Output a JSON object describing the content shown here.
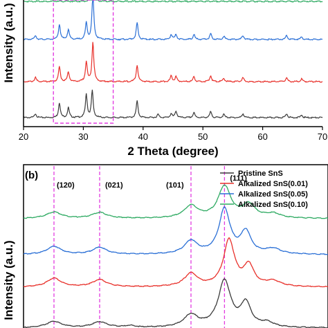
{
  "colors": {
    "pristine": "#3a3a3a",
    "alk001": "#e8302a",
    "alk005": "#2a6fd6",
    "alk010": "#2eaa62",
    "guide": "#e23be0"
  },
  "chart_data": [
    {
      "type": "line",
      "panel": "a",
      "xlabel": "2 Theta (degree)",
      "ylabel": "Intensity (a.u.)",
      "xlim": [
        20,
        70
      ],
      "xticks": [
        "20",
        "30",
        "40",
        "50",
        "60",
        "70"
      ],
      "highlight_region": {
        "x_from": 25,
        "x_to": 35,
        "style": "dashed-box"
      },
      "series": [
        {
          "name": "Pristine SnS",
          "offset": 0,
          "peaks": [
            [
              22.0,
              0.12
            ],
            [
              26.0,
              0.45
            ],
            [
              27.5,
              0.3
            ],
            [
              30.5,
              0.7
            ],
            [
              31.5,
              0.8
            ],
            [
              39.0,
              0.5
            ],
            [
              42.5,
              0.1
            ],
            [
              44.7,
              0.12
            ],
            [
              45.5,
              0.2
            ],
            [
              48.5,
              0.15
            ],
            [
              51.3,
              0.18
            ],
            [
              53.5,
              0.1
            ],
            [
              56.7,
              0.12
            ],
            [
              64.0,
              0.12
            ],
            [
              66.5,
              0.08
            ]
          ]
        },
        {
          "name": "Alkalized SnS(0.01)",
          "offset": 1,
          "peaks": [
            [
              22.0,
              0.12
            ],
            [
              26.0,
              0.45
            ],
            [
              27.5,
              0.3
            ],
            [
              30.5,
              0.6
            ],
            [
              31.6,
              1.2
            ],
            [
              39.0,
              0.5
            ],
            [
              44.7,
              0.18
            ],
            [
              45.5,
              0.15
            ],
            [
              48.5,
              0.15
            ],
            [
              51.3,
              0.18
            ],
            [
              53.5,
              0.1
            ],
            [
              56.7,
              0.12
            ],
            [
              64.0,
              0.12
            ],
            [
              66.5,
              0.08
            ]
          ]
        },
        {
          "name": "Alkalized SnS(0.05)",
          "offset": 2,
          "peaks": [
            [
              22.0,
              0.12
            ],
            [
              26.0,
              0.45
            ],
            [
              27.5,
              0.3
            ],
            [
              30.5,
              0.5
            ],
            [
              31.6,
              1.4
            ],
            [
              39.0,
              0.5
            ],
            [
              44.7,
              0.15
            ],
            [
              45.5,
              0.15
            ],
            [
              48.5,
              0.15
            ],
            [
              51.3,
              0.18
            ],
            [
              53.5,
              0.1
            ],
            [
              56.7,
              0.12
            ],
            [
              64.0,
              0.12
            ],
            [
              66.5,
              0.08
            ]
          ]
        },
        {
          "name": "Alkalized SnS(0.10)",
          "offset": 3,
          "peaks": [
            [
              31.6,
              0.5
            ]
          ]
        }
      ]
    },
    {
      "type": "line",
      "panel": "b",
      "label": "(b)",
      "ylabel": "Intensity (a.u.)",
      "xlim": [
        25,
        35
      ],
      "peak_labels": [
        {
          "text": "(120)",
          "x": 26.0
        },
        {
          "text": "(021)",
          "x": 27.5
        },
        {
          "text": "(101)",
          "x": 30.5
        },
        {
          "text": "(111)",
          "x": 31.6
        }
      ],
      "legend": {
        "position": "top-right",
        "entries": [
          "Pristine SnS",
          "Alkalized SnS(0.01)",
          "Alkalized SnS(0.05)",
          "Alkalized SnS(0.10)"
        ]
      },
      "series": [
        {
          "name": "Pristine SnS",
          "offset": 0,
          "peaks": [
            [
              26.0,
              0.22,
              0.3
            ],
            [
              27.5,
              0.2,
              0.3
            ],
            [
              28.5,
              0.06,
              0.2
            ],
            [
              30.5,
              0.42,
              0.28
            ],
            [
              31.6,
              1.6,
              0.25
            ],
            [
              32.3,
              0.8,
              0.2
            ],
            [
              33.0,
              0.15,
              0.25
            ]
          ]
        },
        {
          "name": "Alkalized SnS(0.01)",
          "offset": 1,
          "peaks": [
            [
              26.0,
              0.3,
              0.28
            ],
            [
              27.5,
              0.25,
              0.28
            ],
            [
              30.5,
              0.45,
              0.26
            ],
            [
              31.75,
              1.6,
              0.22
            ],
            [
              32.4,
              0.7,
              0.2
            ],
            [
              33.2,
              0.18,
              0.3
            ]
          ]
        },
        {
          "name": "Alkalized SnS(0.05)",
          "offset": 2,
          "peaks": [
            [
              26.0,
              0.28,
              0.28
            ],
            [
              27.5,
              0.24,
              0.28
            ],
            [
              30.5,
              0.45,
              0.26
            ],
            [
              31.6,
              1.55,
              0.22
            ],
            [
              32.3,
              0.75,
              0.2
            ],
            [
              33.2,
              0.18,
              0.3
            ]
          ]
        },
        {
          "name": "Alkalized SnS(0.10)",
          "offset": 3,
          "peaks": [
            [
              26.0,
              0.22,
              0.3
            ],
            [
              27.5,
              0.2,
              0.3
            ],
            [
              30.5,
              0.42,
              0.28
            ],
            [
              31.6,
              1.1,
              0.25
            ],
            [
              32.4,
              0.45,
              0.25
            ],
            [
              33.2,
              0.15,
              0.3
            ]
          ]
        }
      ]
    }
  ]
}
